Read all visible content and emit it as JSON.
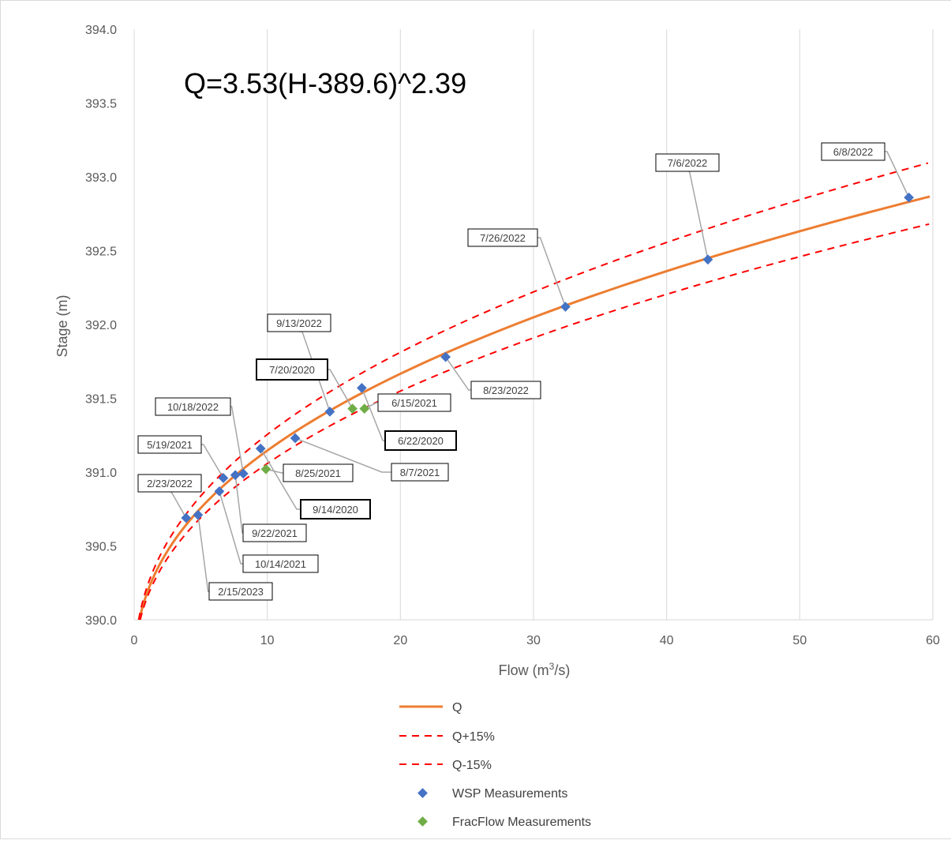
{
  "chart_data": {
    "type": "scatter",
    "equation_text": "Q=3.53(H-389.6)^2.39",
    "equation": {
      "a": 3.53,
      "h0": 389.6,
      "b": 2.39
    },
    "xlabel_main": "Flow (m",
    "xlabel_sup": "3",
    "xlabel_end": "/s)",
    "ylabel": "Stage (m)",
    "xlim": [
      0,
      60
    ],
    "ylim": [
      390.0,
      394.0
    ],
    "x_ticks": [
      "0",
      "10",
      "20",
      "30",
      "40",
      "50",
      "60"
    ],
    "y_ticks": [
      "390.0",
      "390.5",
      "391.0",
      "391.5",
      "392.0",
      "392.5",
      "393.0",
      "393.5",
      "394.0"
    ],
    "grid": "vertical",
    "legend_position": "bottom",
    "colors": {
      "Q": "#ED7D31",
      "Q+15%": "#FF0000",
      "Q-15%": "#FF0000",
      "WSP Measurements": "#4472C4",
      "FracFlow Measurements": "#70AD47"
    },
    "series": [
      {
        "name": "Q",
        "style": "solid",
        "factor": 1.0
      },
      {
        "name": "Q+15%",
        "style": "dashed",
        "factor": 1.15
      },
      {
        "name": "Q-15%",
        "style": "dashed",
        "factor": 0.85
      },
      {
        "name": "WSP Measurements",
        "style": "marker",
        "points": [
          {
            "x": 3.9,
            "y": 390.69,
            "label": "2/23/2022"
          },
          {
            "x": 4.8,
            "y": 390.71,
            "label": "2/15/2023"
          },
          {
            "x": 6.4,
            "y": 390.87,
            "label": "10/14/2021"
          },
          {
            "x": 6.7,
            "y": 390.96,
            "label": "5/19/2021"
          },
          {
            "x": 7.6,
            "y": 390.98,
            "label": "9/22/2021"
          },
          {
            "x": 8.2,
            "y": 390.99,
            "label": "10/18/2022"
          },
          {
            "x": 9.5,
            "y": 391.16,
            "label": "9/14/2020"
          },
          {
            "x": 12.1,
            "y": 391.23,
            "label": "8/7/2021"
          },
          {
            "x": 14.7,
            "y": 391.41,
            "label": "9/13/2022"
          },
          {
            "x": 17.1,
            "y": 391.57,
            "label": "6/22/2020"
          },
          {
            "x": 23.4,
            "y": 391.78,
            "label": "8/23/2022"
          },
          {
            "x": 32.4,
            "y": 392.12,
            "label": "7/26/2022"
          },
          {
            "x": 43.1,
            "y": 392.44,
            "label": "7/6/2022"
          },
          {
            "x": 58.2,
            "y": 392.86,
            "label": "6/8/2022"
          }
        ]
      },
      {
        "name": "FracFlow Measurements",
        "style": "marker",
        "points": [
          {
            "x": 9.9,
            "y": 391.02,
            "label": "8/25/2021"
          },
          {
            "x": 16.4,
            "y": 391.43,
            "label": "7/20/2020"
          },
          {
            "x": 17.3,
            "y": 391.43,
            "label": "6/15/2021"
          }
        ]
      }
    ]
  }
}
